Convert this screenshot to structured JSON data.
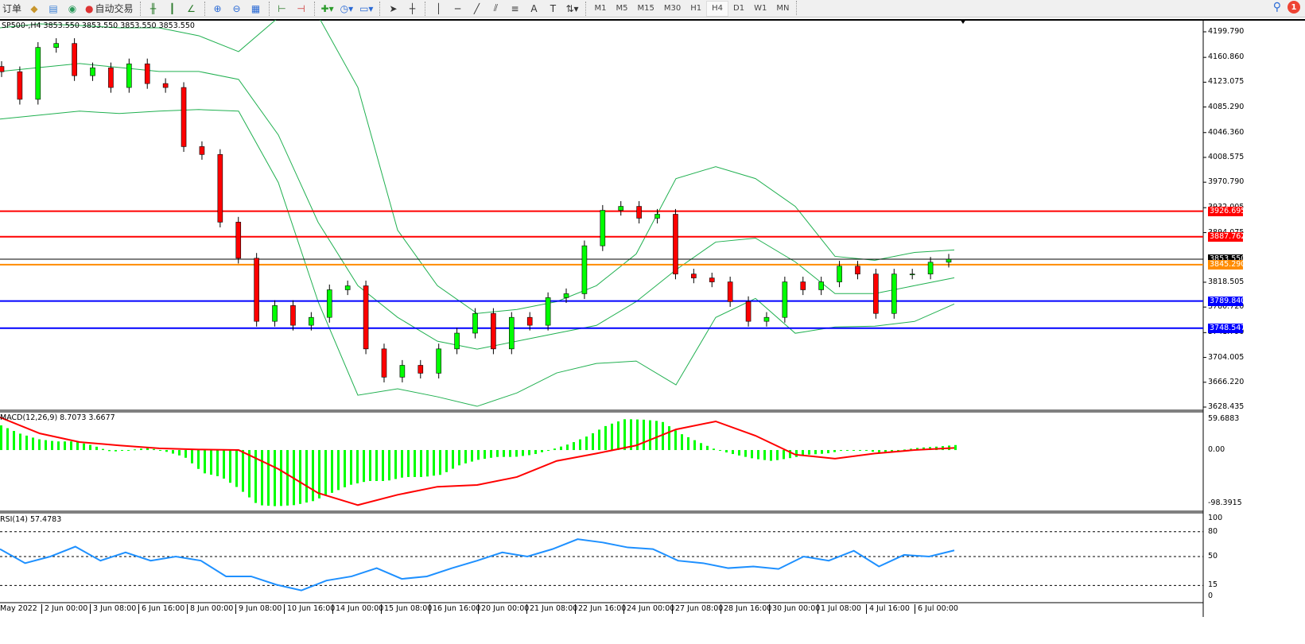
{
  "toolbar": {
    "order_label": "订单",
    "auto_trading_label": "自动交易",
    "timeframes": [
      "M1",
      "M5",
      "M15",
      "M30",
      "H1",
      "H4",
      "D1",
      "W1",
      "MN"
    ],
    "active_timeframe": "H4",
    "notification_count": "1",
    "icons": [
      "navigator-icon",
      "market-watch-icon",
      "signals-icon",
      "auto-trading-icon",
      "bar-chart-icon",
      "candlestick-icon",
      "line-chart-icon",
      "zoom-in-icon",
      "zoom-out-icon",
      "tile-windows-icon",
      "chart-shift-icon",
      "autoscroll-icon",
      "new-indicator-icon",
      "period-clock-icon",
      "template-icon",
      "cursor-icon",
      "crosshair-icon",
      "vertical-line-icon",
      "horizontal-line-icon",
      "trendline-icon",
      "fibonacci-icon",
      "fibo-fan-icon",
      "text-icon",
      "text-label-icon",
      "arrows-icon",
      "search-icon",
      "notification-icon"
    ]
  },
  "main": {
    "title": "SP500-,H4  3853.550 3853.550 3853.550 3853.550",
    "price_axis": [
      "4199.790",
      "4160.860",
      "4123.075",
      "4085.290",
      "4046.360",
      "4008.575",
      "3970.790",
      "3932.005",
      "3894.075",
      "3818.505",
      "3780.720",
      "3741.790",
      "3704.005",
      "3666.220",
      "3628.435"
    ],
    "levels": [
      {
        "price": 3926.695,
        "label": "3926.695",
        "color": "#ff0000"
      },
      {
        "price": 3887.762,
        "label": "3887.762",
        "color": "#ff0000"
      },
      {
        "price": 3853.55,
        "label": "3853.550",
        "color": "#000000"
      },
      {
        "price": 3845.29,
        "label": "3845.290",
        "color": "#ff8c00"
      },
      {
        "price": 3789.84,
        "label": "3789.840",
        "color": "#0000ff"
      },
      {
        "price": 3748.547,
        "label": "3748.547",
        "color": "#0000ff"
      }
    ]
  },
  "macd": {
    "title": "MACD(12,26,9) 8.7073 3.6677",
    "axis": [
      "59.6883",
      "0.00",
      "-98.3915"
    ]
  },
  "rsi": {
    "title": "RSI(14) 57.4783",
    "axis": [
      "100",
      "80",
      "50",
      "15",
      "0"
    ]
  },
  "time_axis": [
    "May 2022",
    "2 Jun 00:00",
    "3 Jun 08:00",
    "6 Jun 16:00",
    "8 Jun 00:00",
    "9 Jun 08:00",
    "10 Jun 16:00",
    "14 Jun 00:00",
    "15 Jun 08:00",
    "16 Jun 16:00",
    "20 Jun 00:00",
    "21 Jun 08:00",
    "22 Jun 16:00",
    "24 Jun 00:00",
    "27 Jun 08:00",
    "28 Jun 16:00",
    "30 Jun 00:00",
    "1 Jul 08:00",
    "4 Jul 16:00",
    "6 Jul 00:00"
  ],
  "chart_data": {
    "type": "candlestick",
    "symbol": "SP500-",
    "timeframe": "H4",
    "ylim": [
      3628.435,
      4199.79
    ],
    "colors": {
      "bull": "#00ff00",
      "bear": "#ff0000",
      "bands": "#20b050",
      "macd_hist": "#00ff00",
      "macd_signal": "#ff0000",
      "rsi": "#1e90ff"
    },
    "close": [
      4139,
      4097,
      4176,
      4182,
      4133,
      4145,
      4115,
      4151,
      4121,
      4115,
      4025,
      4013,
      3910,
      3855,
      3759,
      3783,
      3753,
      3765,
      3807,
      3813,
      3717,
      3674,
      3692,
      3680,
      3717,
      3741,
      3771,
      3717,
      3765,
      3753,
      3795,
      3801,
      3874,
      3928,
      3934,
      3916,
      3922,
      3831,
      3825,
      3819,
      3789,
      3759,
      3765,
      3819,
      3807,
      3819,
      3843,
      3831,
      3771,
      3831,
      3831,
      3849,
      3853.55
    ],
    "bollinger_upper": [
      4205.8,
      4211.9,
      4209.5,
      4205.8,
      4205.8,
      4193.8,
      4169.6,
      4221.5,
      4224,
      4115.2,
      3897.8,
      3813.3,
      3771,
      3777,
      3789,
      3813.3,
      3861.6,
      3976.3,
      3994.4,
      3976.3,
      3934,
      3857.9,
      3851.9,
      3863.9,
      3867.6
    ],
    "bollinger_middle": [
      4139.4,
      4145.4,
      4151.5,
      4145.4,
      4139.4,
      4139.4,
      4127.3,
      4042.8,
      3909.9,
      3813.3,
      3765,
      3728.7,
      3716.6,
      3728.7,
      3740.8,
      3752.8,
      3789,
      3837.4,
      3879.7,
      3885.7,
      3849.5,
      3801.2,
      3801.2,
      3813.3,
      3825.3
    ],
    "bollinger_lower": [
      4066.9,
      4073,
      4079,
      4075.4,
      4079,
      4081.4,
      4079,
      3970.3,
      3789,
      3646.5,
      3656.2,
      3644.1,
      3629.6,
      3650,
      3680.4,
      3694.8,
      3698.5,
      3662.2,
      3764.9,
      3793.9,
      3740.8,
      3750.4,
      3751.6,
      3758.8,
      3785.4
    ],
    "macd_hist": [
      43,
      29,
      19,
      15,
      15,
      8,
      -3,
      0,
      4,
      -3,
      -12,
      -40,
      -47,
      -68,
      -96,
      -98,
      -96,
      -89,
      -75,
      -61,
      -54,
      -54,
      -47,
      -47,
      -43,
      -26,
      -17,
      -12,
      -12,
      -8,
      1,
      11,
      25,
      43,
      54,
      53,
      50,
      29,
      14,
      0,
      -8,
      -15,
      -19,
      -14,
      -8,
      -6,
      0,
      0,
      -6,
      0,
      4,
      6,
      8.7073
    ],
    "macd_signal": [
      57,
      29,
      14,
      8,
      3,
      1,
      0,
      -33,
      -75,
      -96,
      -78,
      -64,
      -61,
      -47,
      -19,
      -6,
      8,
      36,
      50,
      25,
      -8,
      -15,
      -6,
      0,
      3.6677
    ],
    "macd_ylim": [
      -98.3915,
      59.6883
    ],
    "rsi": [
      59,
      42,
      50,
      62,
      45,
      55,
      45,
      50,
      45,
      26,
      26,
      16,
      9,
      21,
      26,
      36,
      23,
      26,
      36,
      45,
      55,
      50,
      59,
      71,
      67,
      61,
      59,
      45,
      42,
      36,
      38,
      35,
      50,
      45,
      57,
      38,
      52,
      50,
      57.4783
    ],
    "rsi_levels": [
      80,
      50,
      15
    ]
  }
}
